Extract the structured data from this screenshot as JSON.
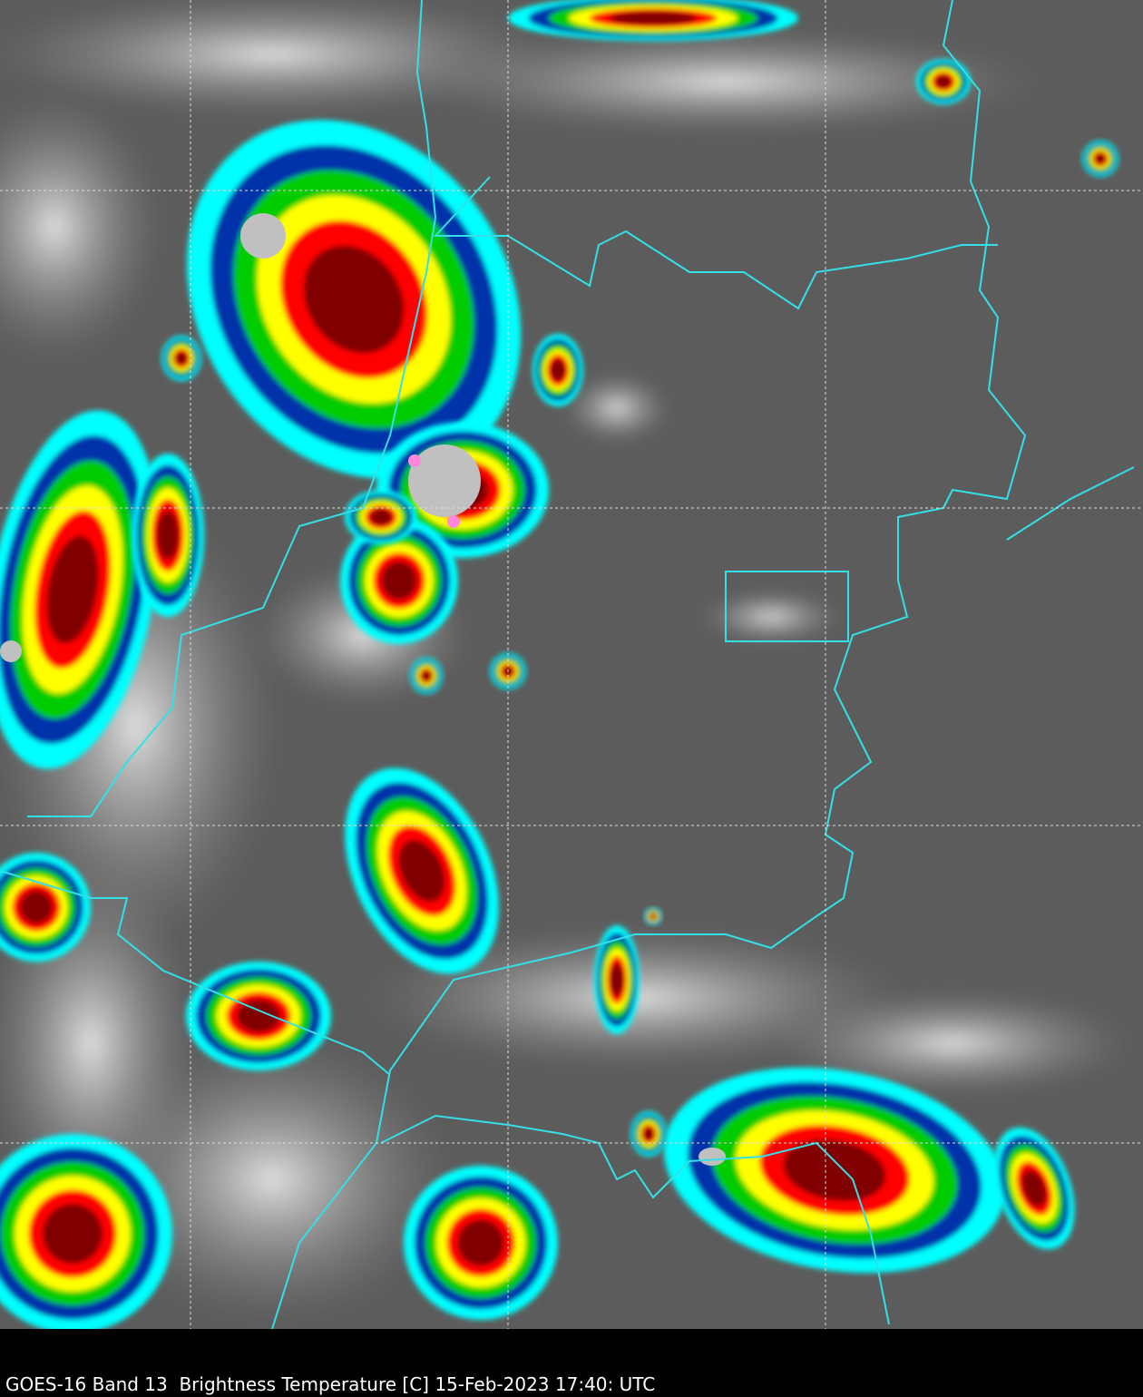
{
  "caption": "GOES-16 Band 13  Brightness Temperature [C] 15-Feb-2023 17:40: UTC",
  "colors": {
    "background": "#000000",
    "boundaries": "#33e0e8",
    "gridlines": "#dddddd",
    "clear_sky": "#5a5a5a",
    "colormap": [
      "#00ffff",
      "#0033aa",
      "#00cc00",
      "#ffff00",
      "#ff0000",
      "#800000",
      "#202020",
      "#c0c0c0",
      "#ff88dd"
    ]
  }
}
